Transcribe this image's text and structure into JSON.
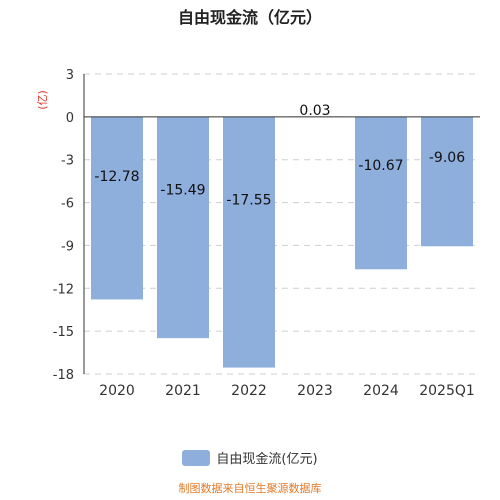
{
  "chart_data": {
    "type": "bar",
    "title": "自由现金流（亿元）",
    "ylabel": "(亿)",
    "categories": [
      "2020",
      "2021",
      "2022",
      "2023",
      "2024",
      "2025Q1"
    ],
    "series": [
      {
        "name": "自由现金流(亿元)",
        "values": [
          -12.78,
          -15.49,
          -17.55,
          0.03,
          -10.67,
          -9.06
        ]
      }
    ],
    "data_labels": [
      "-12.78",
      "-15.49",
      "-17.55",
      "0.03",
      "-10.67",
      "-9.06"
    ],
    "yticks": [
      "3",
      "0",
      "-3",
      "-6",
      "-9",
      "-12",
      "-15",
      "-18"
    ],
    "ylim": [
      -18,
      3
    ],
    "grid": true,
    "legend_position": "bottom",
    "bar_color": "#8eaedc"
  },
  "source_note": "制图数据来自恒生聚源数据库"
}
